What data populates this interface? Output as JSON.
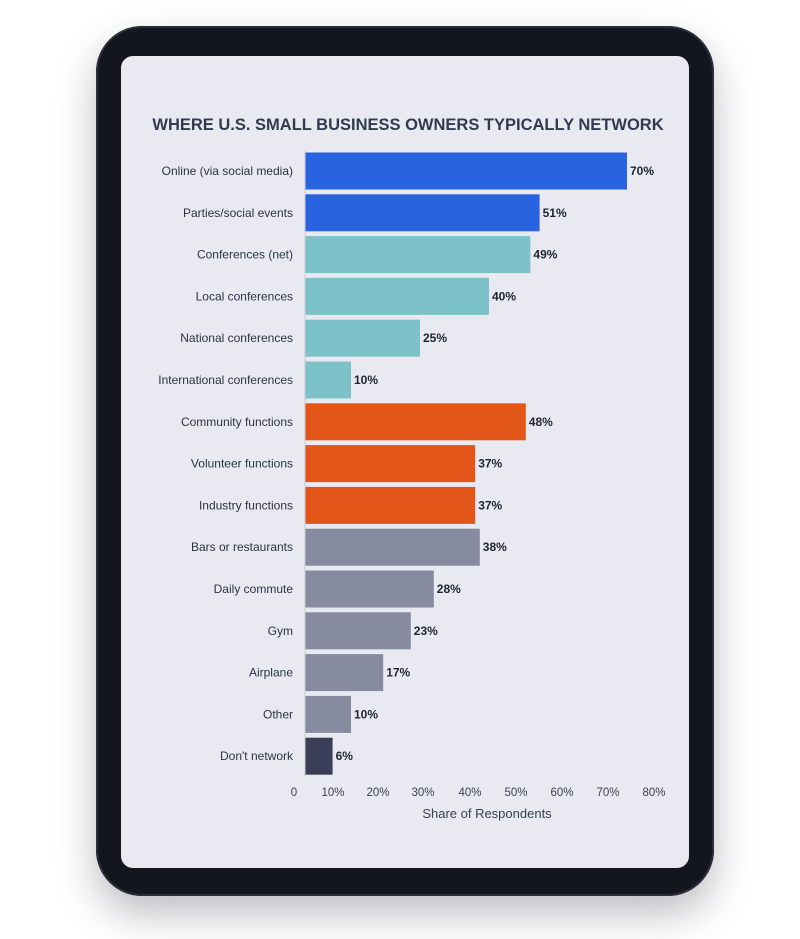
{
  "chart_data": {
    "type": "bar",
    "orientation": "horizontal",
    "title": "WHERE U.S. SMALL BUSINESS OWNERS TYPICALLY NETWORK",
    "xlabel": "Share of Respondents",
    "ylabel": "",
    "xlim": [
      0,
      80
    ],
    "ticks": [
      "0",
      "10%",
      "20%",
      "30%",
      "40%",
      "50%",
      "60%",
      "70%",
      "80%"
    ],
    "grid": false,
    "categories": [
      "Online (via social media)",
      "Parties/social events",
      "Conferences (net)",
      "Local conferences",
      "National conferences",
      "International conferences",
      "Community functions",
      "Volunteer functions",
      "Industry functions",
      "Bars or restaurants",
      "Daily commute",
      "Gym",
      "Airplane",
      "Other",
      "Don't network"
    ],
    "values": [
      70,
      51,
      49,
      40,
      25,
      10,
      48,
      37,
      37,
      38,
      28,
      23,
      17,
      10,
      6
    ],
    "labels": [
      "70%",
      "51%",
      "49%",
      "40%",
      "25%",
      "10%",
      "48%",
      "37%",
      "37%",
      "38%",
      "28%",
      "23%",
      "17%",
      "10%",
      "6%"
    ],
    "colors": [
      "#2a63e0",
      "#2a63e0",
      "#7cc2c8",
      "#7cc2c8",
      "#7cc2c8",
      "#7cc2c8",
      "#e2561a",
      "#e2561a",
      "#e2561a",
      "#878ba0",
      "#878ba0",
      "#878ba0",
      "#878ba0",
      "#878ba0",
      "#3a3e56"
    ]
  }
}
